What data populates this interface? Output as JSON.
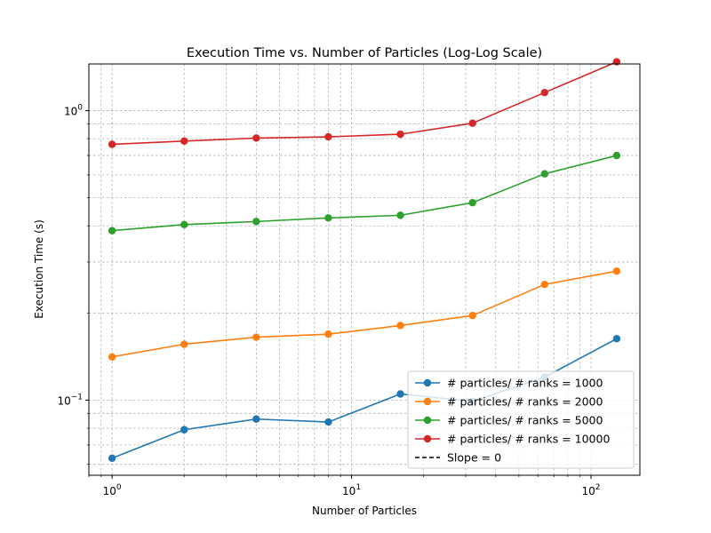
{
  "chart_data": {
    "type": "line",
    "title": "Execution Time vs. Number of Particles (Log-Log Scale)",
    "xlabel": "Number of Particles",
    "ylabel": "Execution Time (s)",
    "xscale": "log",
    "yscale": "log",
    "xlim": [
      0.8,
      160
    ],
    "ylim": [
      0.055,
      1.45
    ],
    "grid": true,
    "legend_position": "lower-right",
    "x": [
      1,
      2,
      4,
      8,
      16,
      32,
      64,
      128
    ],
    "x_tick_labels": [
      "10^0",
      "10^1",
      "10^2"
    ],
    "y_tick_labels": [
      "10^-1",
      "10^0"
    ],
    "series": [
      {
        "name": "# particles/ # ranks = 1000",
        "color": "#1f77b4",
        "values": [
          0.063,
          0.079,
          0.086,
          0.084,
          0.105,
          0.099,
          0.12,
          0.163
        ]
      },
      {
        "name": "# particles/ # ranks = 2000",
        "color": "#ff7f0e",
        "values": [
          0.141,
          0.156,
          0.165,
          0.169,
          0.181,
          0.196,
          0.251,
          0.279
        ]
      },
      {
        "name": "# particles/ # ranks = 5000",
        "color": "#2ca02c",
        "values": [
          0.385,
          0.404,
          0.414,
          0.426,
          0.435,
          0.481,
          0.605,
          0.7
        ]
      },
      {
        "name": "# particles/ # ranks = 10000",
        "color": "#d62728",
        "values": [
          0.765,
          0.785,
          0.804,
          0.812,
          0.829,
          0.905,
          1.155,
          1.475
        ]
      }
    ],
    "extra_legend": {
      "name": "Slope = 0",
      "color": "#000000",
      "style": "dashed"
    }
  }
}
